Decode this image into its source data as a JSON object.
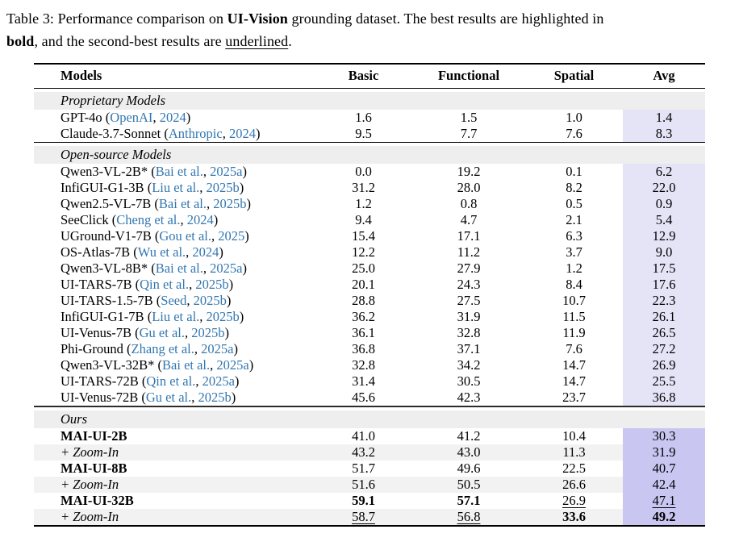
{
  "caption": {
    "lead": "Table 3: Performance comparison on ",
    "dataset_name": "UI-Vision",
    "after_dataset": " grounding dataset. The best results are highlighted in",
    "bold_word": "bold",
    "between": ", and the second-best results are ",
    "underlined_word": "underlined",
    "period": "."
  },
  "table": {
    "columns": [
      "Models",
      "Basic",
      "Functional",
      "Spatial",
      "Avg"
    ],
    "colors": {
      "link": "#3377b0",
      "avg_light": "#e5e3f6",
      "avg_strong": "#c9c6f1",
      "band": "#eeeeee",
      "alt_row": "#f2f2f2"
    },
    "sections": [
      {
        "title": "Proprietary Models",
        "avg_highlight": "light",
        "rows": [
          {
            "name": "GPT-4o",
            "cite_author": "OpenAI",
            "cite_year": "2024",
            "values": [
              "1.6",
              "1.5",
              "1.0",
              "1.4"
            ]
          },
          {
            "name": "Claude-3.7-Sonnet",
            "cite_author": "Anthropic",
            "cite_year": "2024",
            "values": [
              "9.5",
              "7.7",
              "7.6",
              "8.3"
            ]
          }
        ]
      },
      {
        "title": "Open-source Models",
        "avg_highlight": "light",
        "rows": [
          {
            "name": "Qwen3-VL-2B*",
            "cite_author": "Bai et al.",
            "cite_year": "2025a",
            "values": [
              "0.0",
              "19.2",
              "0.1",
              "6.2"
            ]
          },
          {
            "name": "InfiGUI-G1-3B",
            "cite_author": "Liu et al.",
            "cite_year": "2025b",
            "values": [
              "31.2",
              "28.0",
              "8.2",
              "22.0"
            ]
          },
          {
            "name": "Qwen2.5-VL-7B",
            "cite_author": "Bai et al.",
            "cite_year": "2025b",
            "values": [
              "1.2",
              "0.8",
              "0.5",
              "0.9"
            ]
          },
          {
            "name": "SeeClick",
            "cite_author": "Cheng et al.",
            "cite_year": "2024",
            "values": [
              "9.4",
              "4.7",
              "2.1",
              "5.4"
            ]
          },
          {
            "name": "UGround-V1-7B",
            "cite_author": "Gou et al.",
            "cite_year": "2025",
            "values": [
              "15.4",
              "17.1",
              "6.3",
              "12.9"
            ]
          },
          {
            "name": "OS-Atlas-7B",
            "cite_author": "Wu et al.",
            "cite_year": "2024",
            "values": [
              "12.2",
              "11.2",
              "3.7",
              "9.0"
            ]
          },
          {
            "name": "Qwen3-VL-8B*",
            "cite_author": "Bai et al.",
            "cite_year": "2025a",
            "values": [
              "25.0",
              "27.9",
              "1.2",
              "17.5"
            ]
          },
          {
            "name": "UI-TARS-7B",
            "cite_author": "Qin et al.",
            "cite_year": "2025b",
            "values": [
              "20.1",
              "24.3",
              "8.4",
              "17.6"
            ]
          },
          {
            "name": "UI-TARS-1.5-7B",
            "cite_author": "Seed",
            "cite_year": "2025b",
            "values": [
              "28.8",
              "27.5",
              "10.7",
              "22.3"
            ]
          },
          {
            "name": "InfiGUI-G1-7B",
            "cite_author": "Liu et al.",
            "cite_year": "2025b",
            "values": [
              "36.2",
              "31.9",
              "11.5",
              "26.1"
            ]
          },
          {
            "name": "UI-Venus-7B",
            "cite_author": "Gu et al.",
            "cite_year": "2025b",
            "values": [
              "36.1",
              "32.8",
              "11.9",
              "26.5"
            ]
          },
          {
            "name": "Phi-Ground",
            "cite_author": "Zhang et al.",
            "cite_year": "2025a",
            "values": [
              "36.8",
              "37.1",
              "7.6",
              "27.2"
            ]
          },
          {
            "name": "Qwen3-VL-32B*",
            "cite_author": "Bai et al.",
            "cite_year": "2025a",
            "values": [
              "32.8",
              "34.2",
              "14.7",
              "26.9"
            ]
          },
          {
            "name": "UI-TARS-72B",
            "cite_author": "Qin et al.",
            "cite_year": "2025a",
            "values": [
              "31.4",
              "30.5",
              "14.7",
              "25.5"
            ]
          },
          {
            "name": "UI-Venus-72B",
            "cite_author": "Gu et al.",
            "cite_year": "2025b",
            "values": [
              "45.6",
              "42.3",
              "23.7",
              "36.8"
            ]
          }
        ]
      },
      {
        "title": "Ours",
        "avg_highlight": "strong",
        "rows": [
          {
            "name": "MAI-UI-2B",
            "name_style": "bold",
            "values": [
              "41.0",
              "41.2",
              "10.4",
              "30.3"
            ]
          },
          {
            "name": "+ Zoom-In",
            "name_style": "italic",
            "alt_bg": true,
            "values": [
              "43.2",
              "43.0",
              "11.3",
              "31.9"
            ]
          },
          {
            "name": "MAI-UI-8B",
            "name_style": "bold",
            "values": [
              "51.7",
              "49.6",
              "22.5",
              "40.7"
            ]
          },
          {
            "name": "+ Zoom-In",
            "name_style": "italic",
            "alt_bg": true,
            "values": [
              "51.6",
              "50.5",
              "26.6",
              "42.4"
            ]
          },
          {
            "name": "MAI-UI-32B",
            "name_style": "bold",
            "values": [
              "59.1",
              "57.1",
              "26.9",
              "47.1"
            ],
            "emphasis": [
              "bold",
              "bold",
              "underline",
              "underline"
            ]
          },
          {
            "name": "+ Zoom-In",
            "name_style": "italic",
            "alt_bg": true,
            "values": [
              "58.7",
              "56.8",
              "33.6",
              "49.2"
            ],
            "emphasis": [
              "underline",
              "underline",
              "bold",
              "bold"
            ]
          }
        ]
      }
    ]
  }
}
